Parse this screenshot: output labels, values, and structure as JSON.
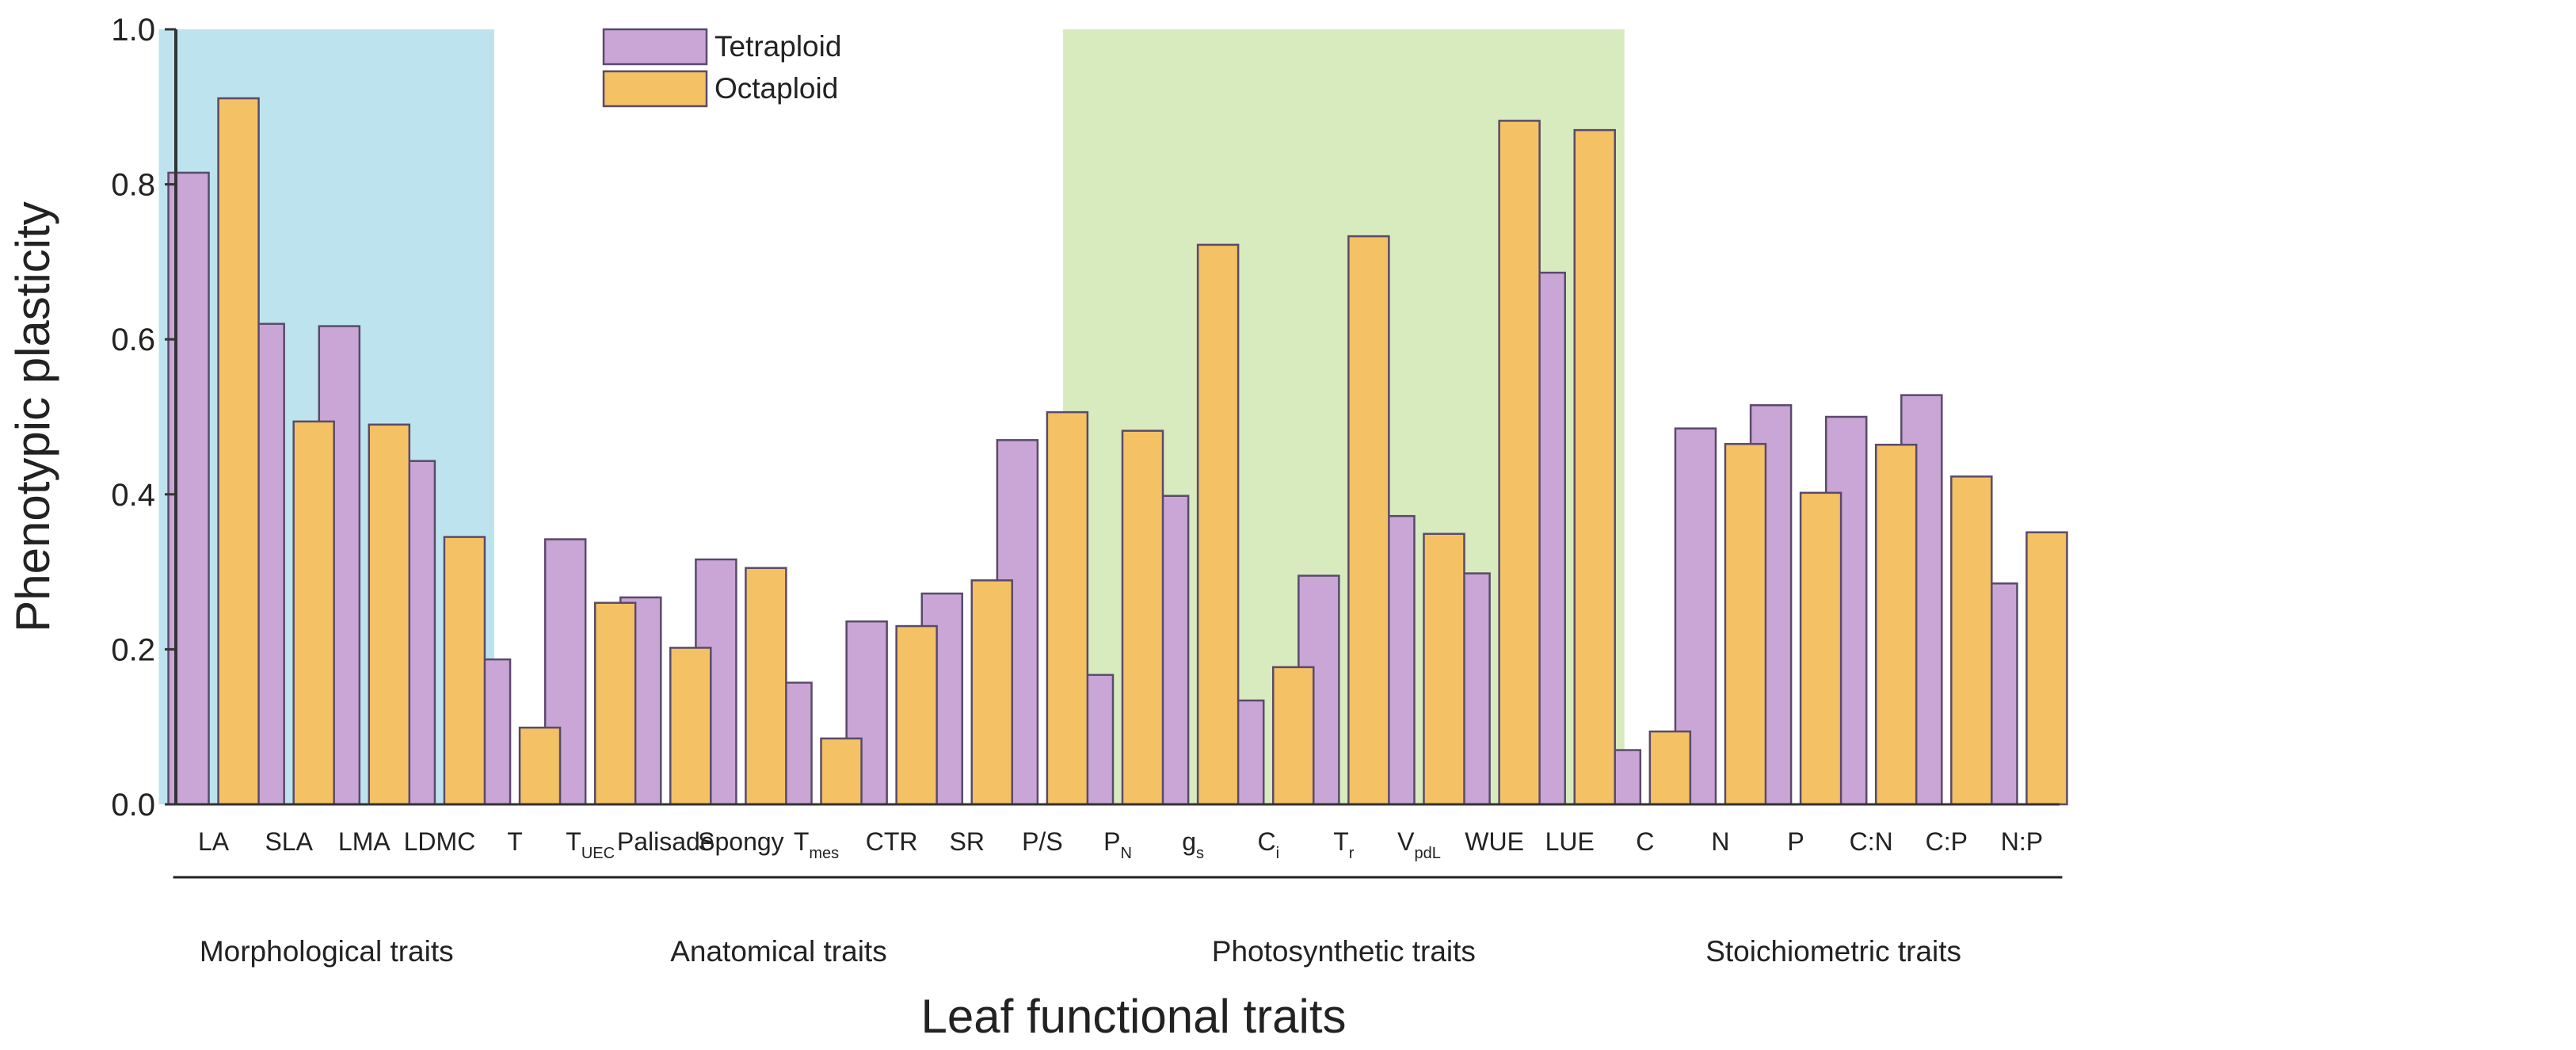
{
  "chart_data": {
    "type": "bar",
    "xlabel": "Leaf functional traits",
    "ylabel": "Phenotypic plasticity",
    "ylim": [
      0,
      1.0
    ],
    "yticks": [
      "0.0",
      "0.2",
      "0.4",
      "0.6",
      "0.8",
      "1.0"
    ],
    "categories": [
      {
        "main": "LA",
        "sub": ""
      },
      {
        "main": "SLA",
        "sub": ""
      },
      {
        "main": "LMA",
        "sub": ""
      },
      {
        "main": "LDMC",
        "sub": ""
      },
      {
        "main": "T",
        "sub": ""
      },
      {
        "main": "T",
        "sub": "UEC"
      },
      {
        "main": "Palisade",
        "sub": ""
      },
      {
        "main": "Spongy",
        "sub": ""
      },
      {
        "main": "T",
        "sub": "mes"
      },
      {
        "main": "CTR",
        "sub": ""
      },
      {
        "main": "SR",
        "sub": ""
      },
      {
        "main": "P/S",
        "sub": ""
      },
      {
        "main": "P",
        "sub": "N"
      },
      {
        "main": "g",
        "sub": "s"
      },
      {
        "main": "C",
        "sub": "i"
      },
      {
        "main": "T",
        "sub": "r"
      },
      {
        "main": "V",
        "sub": "pdL"
      },
      {
        "main": "WUE",
        "sub": ""
      },
      {
        "main": "LUE",
        "sub": ""
      },
      {
        "main": "C",
        "sub": ""
      },
      {
        "main": "N",
        "sub": ""
      },
      {
        "main": "P",
        "sub": ""
      },
      {
        "main": "C:N",
        "sub": ""
      },
      {
        "main": "C:P",
        "sub": ""
      },
      {
        "main": "N:P",
        "sub": ""
      }
    ],
    "series": [
      {
        "name": "Tetraploid",
        "color": "#c9a6d6",
        "values": [
          0.815,
          0.62,
          0.617,
          0.443,
          0.187,
          0.342,
          0.267,
          0.316,
          0.157,
          0.236,
          0.272,
          0.47,
          0.167,
          0.398,
          0.134,
          0.295,
          0.372,
          0.298,
          0.686,
          0.07,
          0.485,
          0.515,
          0.5,
          0.528,
          0.285
        ]
      },
      {
        "name": "Octaploid",
        "color": "#f5c165",
        "values": [
          0.911,
          0.494,
          0.49,
          0.345,
          0.099,
          0.26,
          0.202,
          0.305,
          0.085,
          0.23,
          0.289,
          0.506,
          0.482,
          0.722,
          0.177,
          0.733,
          0.349,
          0.882,
          0.87,
          0.094,
          0.465,
          0.402,
          0.464,
          0.423,
          0.351
        ]
      }
    ],
    "groups": [
      {
        "label": "Morphological traits",
        "first": 0,
        "last": 3,
        "shade": "#bde4ee"
      },
      {
        "label": "Anatomical traits",
        "first": 4,
        "last": 11,
        "shade": ""
      },
      {
        "label": "Photosynthetic traits",
        "first": 12,
        "last": 18,
        "shade": "#d7ebbf"
      },
      {
        "label": "Stoichiometric traits",
        "first": 19,
        "last": 24,
        "shade": ""
      }
    ],
    "legend": {
      "position": "top-left",
      "entries": [
        "Tetraploid",
        "Octaploid"
      ]
    },
    "bar_outline_color": "#5a4a6a",
    "axis_color": "#333333"
  }
}
